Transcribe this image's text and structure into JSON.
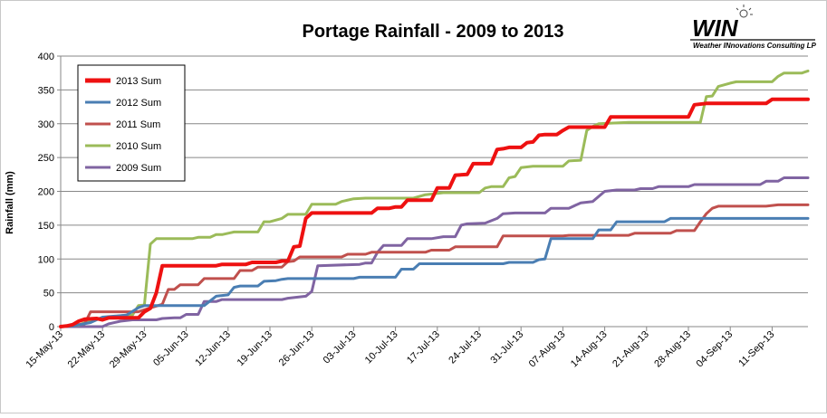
{
  "chart_data": {
    "type": "line",
    "title": "Portage Rainfall - 2009 to 2013",
    "ylabel": "Rainfall (mm)",
    "xlabel": "",
    "ylim": [
      0,
      400
    ],
    "yticks": [
      0,
      50,
      100,
      150,
      200,
      250,
      300,
      350,
      400
    ],
    "xlim": [
      "2013-05-15",
      "2013-09-17"
    ],
    "xticks": [
      "15-May-13",
      "22-May-13",
      "29-May-13",
      "05-Jun-13",
      "12-Jun-13",
      "19-Jun-13",
      "26-Jun-13",
      "03-Jul-13",
      "10-Jul-13",
      "17-Jul-13",
      "24-Jul-13",
      "31-Jul-13",
      "07-Aug-13",
      "14-Aug-13",
      "21-Aug-13",
      "28-Aug-13",
      "04-Sep-13",
      "11-Sep-13"
    ],
    "grid": "horizontal",
    "legend_position": "top-left",
    "series": [
      {
        "name": "2013 Sum",
        "color": "#ee1111",
        "points": [
          [
            "2013-05-15",
            0
          ],
          [
            "2013-05-16",
            1
          ],
          [
            "2013-05-17",
            3
          ],
          [
            "2013-05-18",
            8
          ],
          [
            "2013-05-19",
            11
          ],
          [
            "2013-05-21",
            12
          ],
          [
            "2013-05-22",
            10
          ],
          [
            "2013-05-23",
            13
          ],
          [
            "2013-05-28",
            13
          ],
          [
            "2013-05-29",
            22
          ],
          [
            "2013-05-30",
            27
          ],
          [
            "2013-05-31",
            50
          ],
          [
            "2013-06-01",
            90
          ],
          [
            "2013-06-10",
            90
          ],
          [
            "2013-06-11",
            92
          ],
          [
            "2013-06-15",
            92
          ],
          [
            "2013-06-16",
            95
          ],
          [
            "2013-06-20",
            95
          ],
          [
            "2013-06-21",
            97
          ],
          [
            "2013-06-22",
            97
          ],
          [
            "2013-06-23",
            118
          ],
          [
            "2013-06-24",
            119
          ],
          [
            "2013-06-25",
            160
          ],
          [
            "2013-06-26",
            168
          ],
          [
            "2013-07-06",
            168
          ],
          [
            "2013-07-07",
            175
          ],
          [
            "2013-07-09",
            175
          ],
          [
            "2013-07-10",
            177
          ],
          [
            "2013-07-11",
            177
          ],
          [
            "2013-07-12",
            187
          ],
          [
            "2013-07-16",
            187
          ],
          [
            "2013-07-17",
            205
          ],
          [
            "2013-07-19",
            205
          ],
          [
            "2013-07-20",
            224
          ],
          [
            "2013-07-22",
            225
          ],
          [
            "2013-07-23",
            241
          ],
          [
            "2013-07-26",
            241
          ],
          [
            "2013-07-27",
            262
          ],
          [
            "2013-07-28",
            263
          ],
          [
            "2013-07-29",
            265
          ],
          [
            "2013-07-31",
            265
          ],
          [
            "2013-08-01",
            272
          ],
          [
            "2013-08-02",
            273
          ],
          [
            "2013-08-03",
            283
          ],
          [
            "2013-08-04",
            284
          ],
          [
            "2013-08-06",
            284
          ],
          [
            "2013-08-07",
            290
          ],
          [
            "2013-08-08",
            295
          ],
          [
            "2013-08-14",
            295
          ],
          [
            "2013-08-15",
            310
          ],
          [
            "2013-08-28",
            310
          ],
          [
            "2013-08-29",
            328
          ],
          [
            "2013-08-31",
            330
          ],
          [
            "2013-09-10",
            330
          ],
          [
            "2013-09-11",
            336
          ],
          [
            "2013-09-17",
            336
          ]
        ]
      },
      {
        "name": "2012 Sum",
        "color": "#4a7eb3",
        "points": [
          [
            "2013-05-15",
            0
          ],
          [
            "2013-05-17",
            1
          ],
          [
            "2013-05-20",
            6
          ],
          [
            "2013-05-22",
            14
          ],
          [
            "2013-05-26",
            17
          ],
          [
            "2013-05-28",
            28
          ],
          [
            "2013-05-29",
            31
          ],
          [
            "2013-06-08",
            31
          ],
          [
            "2013-06-09",
            38
          ],
          [
            "2013-06-10",
            45
          ],
          [
            "2013-06-12",
            47
          ],
          [
            "2013-06-13",
            58
          ],
          [
            "2013-06-14",
            60
          ],
          [
            "2013-06-17",
            60
          ],
          [
            "2013-06-18",
            67
          ],
          [
            "2013-06-20",
            68
          ],
          [
            "2013-06-21",
            70
          ],
          [
            "2013-06-22",
            71
          ],
          [
            "2013-07-03",
            71
          ],
          [
            "2013-07-04",
            73
          ],
          [
            "2013-07-10",
            73
          ],
          [
            "2013-07-11",
            85
          ],
          [
            "2013-07-13",
            85
          ],
          [
            "2013-07-14",
            93
          ],
          [
            "2013-07-28",
            93
          ],
          [
            "2013-07-29",
            95
          ],
          [
            "2013-08-02",
            95
          ],
          [
            "2013-08-03",
            99
          ],
          [
            "2013-08-04",
            100
          ],
          [
            "2013-08-05",
            130
          ],
          [
            "2013-08-12",
            130
          ],
          [
            "2013-08-13",
            143
          ],
          [
            "2013-08-15",
            143
          ],
          [
            "2013-08-16",
            155
          ],
          [
            "2013-08-24",
            155
          ],
          [
            "2013-08-25",
            160
          ],
          [
            "2013-09-17",
            160
          ]
        ]
      },
      {
        "name": "2011 Sum",
        "color": "#c0504d",
        "points": [
          [
            "2013-05-15",
            0
          ],
          [
            "2013-05-17",
            2
          ],
          [
            "2013-05-19",
            4
          ],
          [
            "2013-05-20",
            22
          ],
          [
            "2013-05-28",
            22
          ],
          [
            "2013-05-29",
            25
          ],
          [
            "2013-06-01",
            33
          ],
          [
            "2013-06-02",
            55
          ],
          [
            "2013-06-03",
            55
          ],
          [
            "2013-06-04",
            62
          ],
          [
            "2013-06-07",
            62
          ],
          [
            "2013-06-08",
            71
          ],
          [
            "2013-06-13",
            71
          ],
          [
            "2013-06-14",
            83
          ],
          [
            "2013-06-16",
            83
          ],
          [
            "2013-06-17",
            88
          ],
          [
            "2013-06-21",
            88
          ],
          [
            "2013-06-22",
            96
          ],
          [
            "2013-06-23",
            97
          ],
          [
            "2013-06-24",
            103
          ],
          [
            "2013-07-01",
            103
          ],
          [
            "2013-07-02",
            107
          ],
          [
            "2013-07-05",
            107
          ],
          [
            "2013-07-06",
            110
          ],
          [
            "2013-07-15",
            110
          ],
          [
            "2013-07-16",
            113
          ],
          [
            "2013-07-19",
            113
          ],
          [
            "2013-07-20",
            118
          ],
          [
            "2013-07-27",
            118
          ],
          [
            "2013-07-28",
            134
          ],
          [
            "2013-08-07",
            134
          ],
          [
            "2013-08-08",
            135
          ],
          [
            "2013-08-18",
            135
          ],
          [
            "2013-08-19",
            138
          ],
          [
            "2013-08-25",
            138
          ],
          [
            "2013-08-26",
            142
          ],
          [
            "2013-08-29",
            142
          ],
          [
            "2013-08-30",
            155
          ],
          [
            "2013-08-31",
            167
          ],
          [
            "2013-09-01",
            175
          ],
          [
            "2013-09-02",
            178
          ],
          [
            "2013-09-10",
            178
          ],
          [
            "2013-09-12",
            180
          ],
          [
            "2013-09-17",
            180
          ]
        ]
      },
      {
        "name": "2010 Sum",
        "color": "#9bbb59",
        "points": [
          [
            "2013-05-15",
            0
          ],
          [
            "2013-05-18",
            2
          ],
          [
            "2013-05-20",
            10
          ],
          [
            "2013-05-22",
            13
          ],
          [
            "2013-05-24",
            15
          ],
          [
            "2013-05-26",
            17
          ],
          [
            "2013-05-27",
            17
          ],
          [
            "2013-05-28",
            31
          ],
          [
            "2013-05-29",
            32
          ],
          [
            "2013-05-30",
            122
          ],
          [
            "2013-05-31",
            130
          ],
          [
            "2013-06-06",
            130
          ],
          [
            "2013-06-07",
            132
          ],
          [
            "2013-06-09",
            132
          ],
          [
            "2013-06-10",
            136
          ],
          [
            "2013-06-11",
            136
          ],
          [
            "2013-06-13",
            140
          ],
          [
            "2013-06-17",
            140
          ],
          [
            "2013-06-18",
            155
          ],
          [
            "2013-06-19",
            155
          ],
          [
            "2013-06-21",
            160
          ],
          [
            "2013-06-22",
            166
          ],
          [
            "2013-06-25",
            166
          ],
          [
            "2013-06-26",
            181
          ],
          [
            "2013-06-30",
            181
          ],
          [
            "2013-07-01",
            185
          ],
          [
            "2013-07-03",
            189
          ],
          [
            "2013-07-05",
            190
          ],
          [
            "2013-07-13",
            190
          ],
          [
            "2013-07-15",
            195
          ],
          [
            "2013-07-17",
            197
          ],
          [
            "2013-07-18",
            198
          ],
          [
            "2013-07-24",
            198
          ],
          [
            "2013-07-25",
            205
          ],
          [
            "2013-07-26",
            207
          ],
          [
            "2013-07-28",
            207
          ],
          [
            "2013-07-29",
            220
          ],
          [
            "2013-07-30",
            222
          ],
          [
            "2013-07-31",
            235
          ],
          [
            "2013-08-02",
            237
          ],
          [
            "2013-08-07",
            237
          ],
          [
            "2013-08-08",
            245
          ],
          [
            "2013-08-10",
            246
          ],
          [
            "2013-08-11",
            290
          ],
          [
            "2013-08-12",
            296
          ],
          [
            "2013-08-13",
            300
          ],
          [
            "2013-08-18",
            302
          ],
          [
            "2013-08-30",
            302
          ],
          [
            "2013-08-31",
            340
          ],
          [
            "2013-09-01",
            341
          ],
          [
            "2013-09-02",
            355
          ],
          [
            "2013-09-04",
            360
          ],
          [
            "2013-09-05",
            362
          ],
          [
            "2013-09-11",
            362
          ],
          [
            "2013-09-12",
            370
          ],
          [
            "2013-09-13",
            375
          ],
          [
            "2013-09-16",
            375
          ],
          [
            "2013-09-17",
            378
          ]
        ]
      },
      {
        "name": "2009 Sum",
        "color": "#8064a2",
        "points": [
          [
            "2013-05-15",
            0
          ],
          [
            "2013-05-22",
            0
          ],
          [
            "2013-05-23",
            4
          ],
          [
            "2013-05-25",
            8
          ],
          [
            "2013-05-27",
            10
          ],
          [
            "2013-05-31",
            10
          ],
          [
            "2013-06-01",
            12
          ],
          [
            "2013-06-03",
            13
          ],
          [
            "2013-06-04",
            13
          ],
          [
            "2013-06-05",
            18
          ],
          [
            "2013-06-07",
            18
          ],
          [
            "2013-06-08",
            37
          ],
          [
            "2013-06-10",
            37
          ],
          [
            "2013-06-11",
            40
          ],
          [
            "2013-06-21",
            40
          ],
          [
            "2013-06-22",
            42
          ],
          [
            "2013-06-23",
            43
          ],
          [
            "2013-06-25",
            45
          ],
          [
            "2013-06-26",
            52
          ],
          [
            "2013-06-27",
            90
          ],
          [
            "2013-07-04",
            92
          ],
          [
            "2013-07-05",
            94
          ],
          [
            "2013-07-06",
            94
          ],
          [
            "2013-07-07",
            110
          ],
          [
            "2013-07-08",
            120
          ],
          [
            "2013-07-11",
            120
          ],
          [
            "2013-07-12",
            130
          ],
          [
            "2013-07-16",
            130
          ],
          [
            "2013-07-18",
            133
          ],
          [
            "2013-07-20",
            133
          ],
          [
            "2013-07-21",
            150
          ],
          [
            "2013-07-22",
            152
          ],
          [
            "2013-07-25",
            153
          ],
          [
            "2013-07-27",
            160
          ],
          [
            "2013-07-28",
            167
          ],
          [
            "2013-07-30",
            168
          ],
          [
            "2013-08-04",
            168
          ],
          [
            "2013-08-05",
            175
          ],
          [
            "2013-08-08",
            175
          ],
          [
            "2013-08-10",
            183
          ],
          [
            "2013-08-12",
            185
          ],
          [
            "2013-08-14",
            200
          ],
          [
            "2013-08-16",
            202
          ],
          [
            "2013-08-19",
            202
          ],
          [
            "2013-08-20",
            204
          ],
          [
            "2013-08-22",
            204
          ],
          [
            "2013-08-23",
            207
          ],
          [
            "2013-08-28",
            207
          ],
          [
            "2013-08-29",
            210
          ],
          [
            "2013-09-09",
            210
          ],
          [
            "2013-09-10",
            215
          ],
          [
            "2013-09-12",
            215
          ],
          [
            "2013-09-13",
            220
          ],
          [
            "2013-09-17",
            220
          ]
        ]
      }
    ]
  },
  "logo": {
    "brand": "WIN",
    "tagline": "Weather INnovations Consulting LP"
  }
}
